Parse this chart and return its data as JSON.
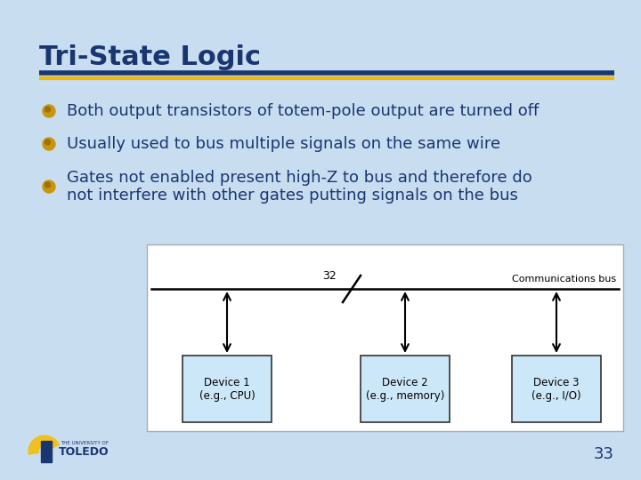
{
  "title": "Tri-State Logic",
  "title_color": "#1a3670",
  "title_fontsize": 22,
  "bg_color": "#c8ddf0",
  "rule_color1": "#1a3670",
  "rule_color2": "#f0b800",
  "bullet_color": "#c8960c",
  "bullet_shadow": "#a07000",
  "text_color": "#1a3670",
  "text_fontsize": 13,
  "bullets": [
    "Both output transistors of totem-pole output are turned off",
    "Usually used to bus multiple signals on the same wire",
    "Gates not enabled present high-Z to bus and therefore do\nnot interfere with other gates putting signals on the bus"
  ],
  "diagram_bg": "#ffffff",
  "diagram_border": "#aaaaaa",
  "device_fill": "#cce8f8",
  "device_border": "#333333",
  "bus_label": "32",
  "bus_right_label": "Communications bus",
  "device1_label": "Device 1\n(e.g., CPU)",
  "device2_label": "Device 2\n(e.g., memory)",
  "device3_label": "Device 3\n(e.g., I/O)",
  "page_number": "33"
}
